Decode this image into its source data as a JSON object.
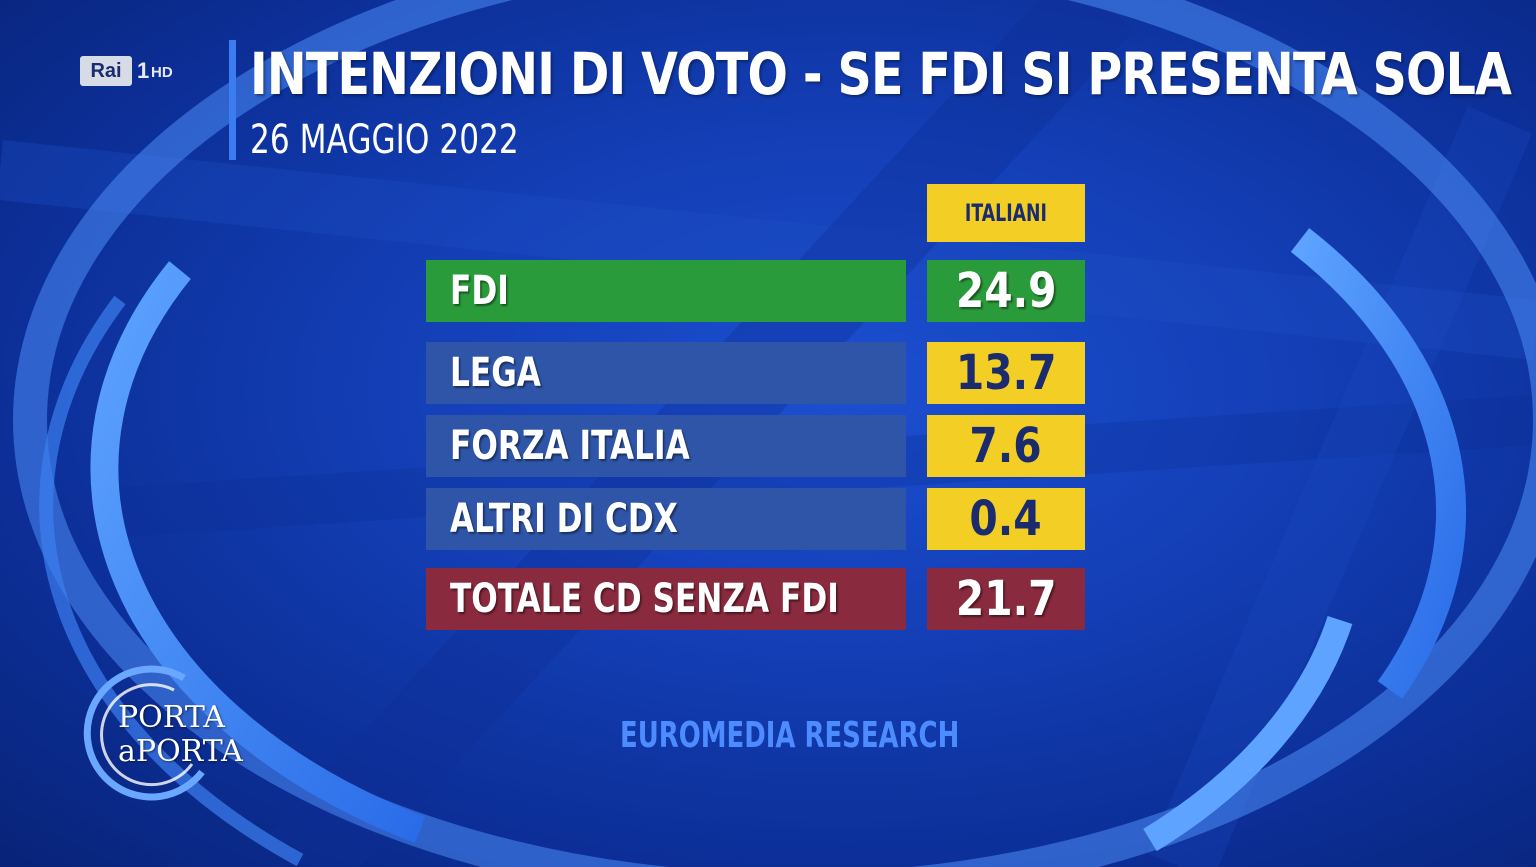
{
  "network": {
    "brand": "Rai",
    "channel": "1",
    "quality": "HD"
  },
  "show": {
    "line1": "PORTA",
    "line2": "aPORTA"
  },
  "chart_data": {
    "type": "table",
    "title": "INTENZIONI DI VOTO - SE FDI SI PRESENTA SOLA",
    "subtitle": "26 MAGGIO 2022",
    "column_header": "ITALIANI",
    "rows": [
      {
        "label": "FDI",
        "value": "24.9",
        "label_color": "#2a9b3a",
        "value_color": "#2a9b3a",
        "text_color": "#ffffff"
      },
      {
        "label": "LEGA",
        "value": "13.7",
        "label_color": "#2f55a8",
        "value_color": "#f3cf25",
        "text_color": "#1a2b6e"
      },
      {
        "label": "FORZA ITALIA",
        "value": "7.6",
        "label_color": "#2f55a8",
        "value_color": "#f3cf25",
        "text_color": "#1a2b6e"
      },
      {
        "label": "ALTRI DI CDX",
        "value": "0.4",
        "label_color": "#2f55a8",
        "value_color": "#f3cf25",
        "text_color": "#1a2b6e"
      },
      {
        "label": "TOTALE CD SENZA FDI",
        "value": "21.7",
        "label_color": "#8a2a3e",
        "value_color": "#8a2a3e",
        "text_color": "#ffffff"
      }
    ],
    "source": "EUROMEDIA RESEARCH"
  }
}
